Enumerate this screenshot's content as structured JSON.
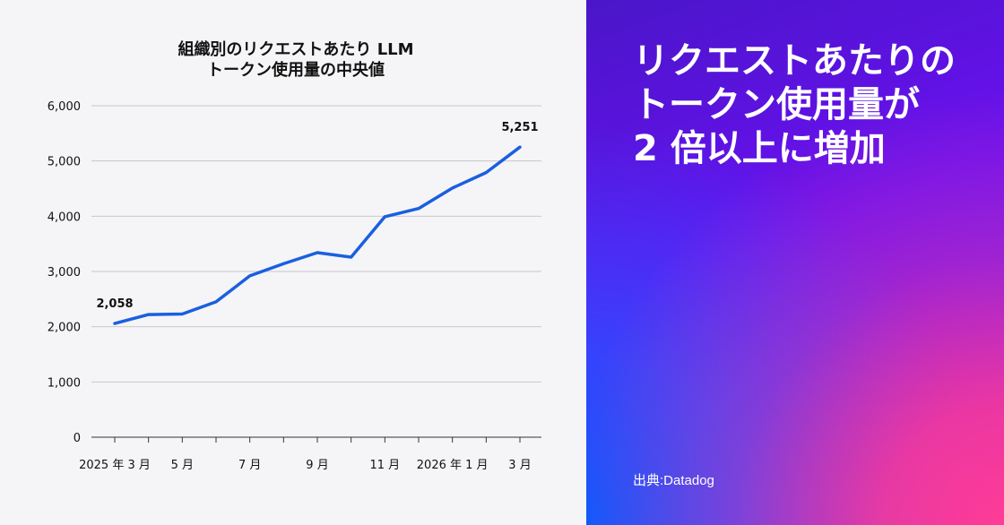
{
  "chart": {
    "title_lines": [
      "組織別のリクエストあたり LLM",
      "トークン使用量の中央値"
    ]
  },
  "hero": {
    "lines": [
      "リクエストあたりの",
      "トークン使用量が",
      "2 倍以上に増加"
    ]
  },
  "source": "出典:Datadog",
  "colors": {
    "line": "#1a5fe0",
    "grid": "#c8c8cc",
    "axis": "#333333",
    "hero_start": "#4a16c9",
    "hero_pink": "#ff3c96",
    "hero_blue": "#0a5aff"
  },
  "chart_data": {
    "type": "line",
    "title": "組織別のリクエストあたり LLM トークン使用量の中央値",
    "xlabel": "",
    "ylabel": "",
    "ylim": [
      0,
      6000
    ],
    "yticks": [
      0,
      1000,
      2000,
      3000,
      4000,
      5000,
      6000
    ],
    "ytick_labels": [
      "0",
      "1,000",
      "2,000",
      "3,000",
      "4,000",
      "5,000",
      "6,000"
    ],
    "x_labels": [
      "2025 年 3 月",
      "",
      "5 月",
      "",
      "7 月",
      "",
      "9 月",
      "",
      "11 月",
      "",
      "2026 年 1 月",
      "",
      "3 月"
    ],
    "grid": true,
    "series": [
      {
        "values": [
          2058,
          2220,
          2230,
          2450,
          2920,
          3140,
          3340,
          3260,
          3990,
          4140,
          4510,
          4790,
          5251
        ]
      }
    ],
    "annotations": [
      {
        "index": 0,
        "text": "2,058"
      },
      {
        "index": 12,
        "text": "5,251"
      }
    ]
  }
}
